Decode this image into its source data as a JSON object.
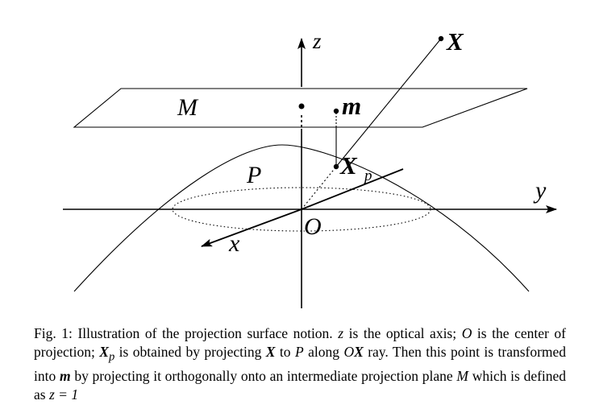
{
  "figure": {
    "labels": {
      "z_axis": "z",
      "y_axis": "y",
      "x_axis": "x",
      "origin": "O",
      "point_X": "X",
      "point_m": "m",
      "point_Xp_main": "X",
      "point_Xp_sub": "p",
      "plane_M": "M",
      "surface_P": "P"
    }
  },
  "caption": {
    "prefix": "Fig. 1: Illustration of the projection surface notion.",
    "t1_var": "z",
    "t1": "is the optical axis;",
    "t2_var": "O",
    "t2": "is the center of projection;",
    "t3_var": "X",
    "t3_sub": "p",
    "t3": "is obtained by projecting",
    "t4_var": "X",
    "t4": "to",
    "t5_var": "P",
    "t5": "along",
    "t6_var_a": "O",
    "t6_var_b": "X",
    "t6": "ray. Then this point is transformed into",
    "t7_var": "m",
    "t7": "by projecting it orthogonally onto an intermediate projection plane",
    "t8_var": "M",
    "t8": "which is defined as",
    "t9_eq": "z = 1"
  }
}
